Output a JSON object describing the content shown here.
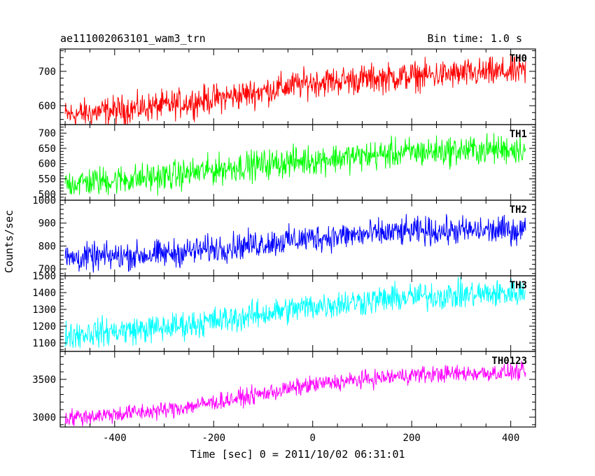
{
  "chart_data": {
    "type": "line",
    "title_left": "ae111002063101_wam3_trn",
    "title_right": "Bin time: 1.0 s",
    "xlabel": "Time [sec] 0 = 2011/10/02 06:31:01",
    "ylabel": "Counts/sec",
    "xlim": [
      -510,
      450
    ],
    "x_range": [
      -500,
      430
    ],
    "xticks": [
      -400,
      -200,
      0,
      200,
      400
    ],
    "panels": [
      {
        "name": "TH0",
        "color": "#ff0000",
        "ylim": [
          545,
          765
        ],
        "yticks": [
          600,
          700
        ],
        "trend": [
          [
            -500,
            572
          ],
          [
            -300,
            600
          ],
          [
            -150,
            630
          ],
          [
            0,
            668
          ],
          [
            200,
            686
          ],
          [
            430,
            700
          ]
        ],
        "noise": 28
      },
      {
        "name": "TH1",
        "color": "#00ff00",
        "ylim": [
          480,
          728
        ],
        "yticks": [
          500,
          550,
          600,
          650,
          700
        ],
        "trend": [
          [
            -500,
            535
          ],
          [
            -300,
            557
          ],
          [
            -150,
            590
          ],
          [
            0,
            612
          ],
          [
            200,
            637
          ],
          [
            430,
            650
          ]
        ],
        "noise": 32
      },
      {
        "name": "TH2",
        "color": "#0000ff",
        "ylim": [
          670,
          1000
        ],
        "yticks": [
          700,
          800,
          900,
          1000
        ],
        "trend": [
          [
            -500,
            745
          ],
          [
            -300,
            765
          ],
          [
            -150,
            800
          ],
          [
            0,
            835
          ],
          [
            200,
            863
          ],
          [
            430,
            870
          ]
        ],
        "noise": 40
      },
      {
        "name": "TH3",
        "color": "#00ffff",
        "ylim": [
          1050,
          1500
        ],
        "yticks": [
          1100,
          1200,
          1300,
          1400,
          1500
        ],
        "trend": [
          [
            -500,
            1150
          ],
          [
            -300,
            1190
          ],
          [
            -150,
            1250
          ],
          [
            0,
            1320
          ],
          [
            200,
            1375
          ],
          [
            430,
            1400
          ]
        ],
        "noise": 55
      },
      {
        "name": "TH0123",
        "color": "#ff00ff",
        "ylim": [
          2870,
          3870
        ],
        "yticks": [
          3000,
          3500
        ],
        "trend": [
          [
            -500,
            2990
          ],
          [
            -300,
            3090
          ],
          [
            -150,
            3250
          ],
          [
            0,
            3430
          ],
          [
            200,
            3560
          ],
          [
            430,
            3600
          ]
        ],
        "noise": 75
      }
    ]
  }
}
